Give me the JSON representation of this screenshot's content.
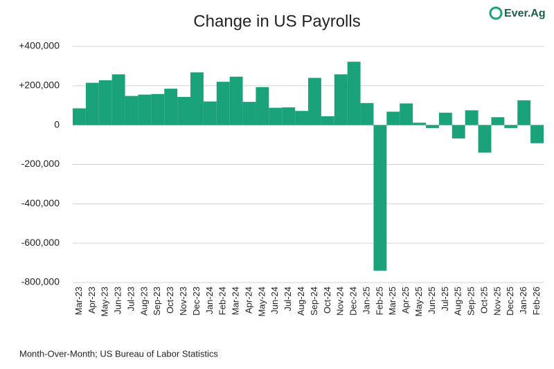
{
  "chart_data": {
    "type": "bar",
    "title": "Change in US Payrolls",
    "logo": "Ever.Ag",
    "footnote": "Month-Over-Month; US Bureau of Labor Statistics",
    "categories": [
      "Mar-23",
      "Apr-23",
      "May-23",
      "Jun-23",
      "Jul-23",
      "Aug-23",
      "Sep-23",
      "Oct-23",
      "Nov-23",
      "Dec-23",
      "Jan-24",
      "Feb-24",
      "Mar-24",
      "Apr-24",
      "May-24",
      "Jun-24",
      "Jul-24",
      "Aug-24",
      "Sep-24",
      "Oct-24",
      "Nov-24",
      "Dec-24",
      "Jan-25",
      "Feb-25",
      "Mar-25",
      "Apr-25",
      "May-25",
      "Jun-25",
      "Jul-25",
      "Aug-25",
      "Sep-25",
      "Oct-25",
      "Nov-25",
      "Dec-25",
      "Jan-26",
      "Feb-26"
    ],
    "values": [
      85000,
      215000,
      228000,
      258000,
      148000,
      155000,
      158000,
      185000,
      143000,
      268000,
      120000,
      220000,
      246000,
      118000,
      193000,
      88000,
      90000,
      72000,
      240000,
      45000,
      258000,
      322000,
      112000,
      -740000,
      68000,
      110000,
      12000,
      -15000,
      63000,
      -68000,
      75000,
      -140000,
      40000,
      -15000,
      126000,
      -92000
    ],
    "color": "#1aa37a",
    "ylim": [
      -800000,
      400000
    ],
    "yticks": [
      {
        "value": -800000,
        "label": "-800,000"
      },
      {
        "value": -600000,
        "label": "-600,000"
      },
      {
        "value": -400000,
        "label": "-400,000"
      },
      {
        "value": -200000,
        "label": "-200,000"
      },
      0,
      {
        "value": 200000,
        "label": "+200,000"
      },
      {
        "value": 400000,
        "label": "+400,000"
      }
    ],
    "grid": true
  }
}
